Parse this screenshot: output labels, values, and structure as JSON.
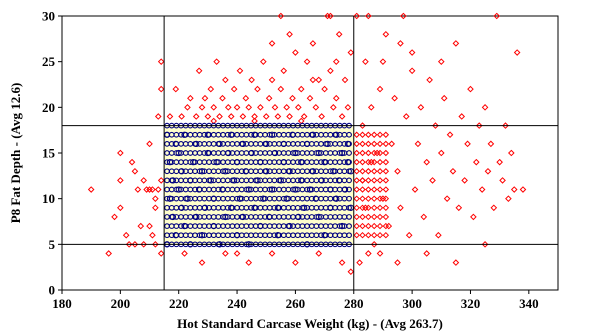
{
  "chart_data": {
    "type": "scatter",
    "title": "",
    "xlabel": "Hot Standard Carcase Weight (kg) - (Avg 263.7)",
    "ylabel": "P8 Fat Depth - (Avg 12.6)",
    "xlim": [
      180,
      350
    ],
    "ylim": [
      0,
      30
    ],
    "x_ticks": [
      180,
      200,
      220,
      240,
      260,
      280,
      300,
      320,
      340
    ],
    "y_ticks": [
      0,
      5,
      10,
      15,
      20,
      25,
      30
    ],
    "grid": false,
    "legend": "none",
    "reference_lines": {
      "vertical": [
        215,
        280
      ],
      "horizontal": [
        5,
        18
      ]
    },
    "in_spec_region": {
      "x": [
        215,
        280
      ],
      "y": [
        5,
        18
      ],
      "fill_color": "#ffffcc"
    },
    "series": [
      {
        "marker": "diamond",
        "color": "#ff0000",
        "description_points": "outside specification",
        "points": [
          [
            190,
            11
          ],
          [
            196,
            4
          ],
          [
            198,
            8
          ],
          [
            200,
            12
          ],
          [
            200,
            9
          ],
          [
            202,
            6
          ],
          [
            203,
            5
          ],
          [
            204,
            14
          ],
          [
            205,
            5
          ],
          [
            206,
            11
          ],
          [
            207,
            7
          ],
          [
            208,
            5
          ],
          [
            208,
            12
          ],
          [
            209,
            11
          ],
          [
            210,
            11
          ],
          [
            210,
            7
          ],
          [
            211,
            11
          ],
          [
            211,
            6
          ],
          [
            212,
            10
          ],
          [
            212,
            9
          ],
          [
            212,
            5
          ],
          [
            213,
            11
          ],
          [
            214,
            4
          ],
          [
            214,
            12
          ],
          [
            214,
            25
          ],
          [
            214,
            22
          ],
          [
            213,
            19
          ],
          [
            210,
            16
          ],
          [
            205,
            13
          ],
          [
            200,
            15
          ],
          [
            217,
            19
          ],
          [
            219,
            22
          ],
          [
            221,
            19
          ],
          [
            223,
            20
          ],
          [
            224,
            21
          ],
          [
            226,
            19
          ],
          [
            227,
            24
          ],
          [
            228,
            20
          ],
          [
            229,
            21
          ],
          [
            230,
            19
          ],
          [
            231,
            22
          ],
          [
            232,
            20
          ],
          [
            233,
            25
          ],
          [
            234,
            19
          ],
          [
            235,
            21
          ],
          [
            236,
            23
          ],
          [
            237,
            20
          ],
          [
            238,
            19
          ],
          [
            239,
            22
          ],
          [
            240,
            20
          ],
          [
            241,
            24
          ],
          [
            242,
            19
          ],
          [
            243,
            21
          ],
          [
            244,
            20
          ],
          [
            245,
            23
          ],
          [
            246,
            19
          ],
          [
            247,
            22
          ],
          [
            248,
            20
          ],
          [
            249,
            25
          ],
          [
            250,
            19
          ],
          [
            251,
            21
          ],
          [
            252,
            23
          ],
          [
            253,
            20
          ],
          [
            254,
            19
          ],
          [
            255,
            30
          ],
          [
            255,
            22
          ],
          [
            256,
            24
          ],
          [
            257,
            20
          ],
          [
            258,
            19
          ],
          [
            259,
            21
          ],
          [
            260,
            26
          ],
          [
            261,
            20
          ],
          [
            262,
            22
          ],
          [
            263,
            19
          ],
          [
            264,
            25
          ],
          [
            265,
            21
          ],
          [
            266,
            27
          ],
          [
            267,
            20
          ],
          [
            268,
            23
          ],
          [
            269,
            19
          ],
          [
            270,
            22
          ],
          [
            271,
            30
          ],
          [
            272,
            30
          ],
          [
            272,
            24
          ],
          [
            273,
            20
          ],
          [
            274,
            21
          ],
          [
            275,
            28
          ],
          [
            276,
            19
          ],
          [
            277,
            23
          ],
          [
            278,
            20
          ],
          [
            279,
            26
          ],
          [
            258,
            28
          ],
          [
            266,
            23
          ],
          [
            274,
            25
          ],
          [
            262,
            18.5
          ],
          [
            246,
            18.5
          ],
          [
            232,
            18.5
          ],
          [
            252,
            27
          ],
          [
            222,
            4
          ],
          [
            228,
            3
          ],
          [
            236,
            4
          ],
          [
            244,
            3
          ],
          [
            252,
            4
          ],
          [
            260,
            3
          ],
          [
            268,
            4
          ],
          [
            276,
            3
          ],
          [
            279,
            2
          ],
          [
            240,
            4
          ],
          [
            281,
            30
          ],
          [
            283,
            18
          ],
          [
            283,
            12
          ],
          [
            284,
            25
          ],
          [
            285,
            30
          ],
          [
            286,
            20
          ],
          [
            287,
            5
          ],
          [
            288,
            15
          ],
          [
            289,
            22
          ],
          [
            290,
            10
          ],
          [
            291,
            28
          ],
          [
            292,
            7
          ],
          [
            293,
            16
          ],
          [
            294,
            21
          ],
          [
            295,
            13
          ],
          [
            296,
            9
          ],
          [
            297,
            30
          ],
          [
            298,
            19
          ],
          [
            299,
            6
          ],
          [
            300,
            24
          ],
          [
            301,
            11
          ],
          [
            302,
            16
          ],
          [
            303,
            20
          ],
          [
            304,
            8
          ],
          [
            305,
            14
          ],
          [
            306,
            23
          ],
          [
            307,
            12
          ],
          [
            308,
            18
          ],
          [
            309,
            6
          ],
          [
            310,
            15
          ],
          [
            311,
            21
          ],
          [
            312,
            10
          ],
          [
            313,
            17
          ],
          [
            314,
            13
          ],
          [
            315,
            27
          ],
          [
            316,
            9
          ],
          [
            317,
            19
          ],
          [
            318,
            12
          ],
          [
            319,
            16
          ],
          [
            320,
            22
          ],
          [
            321,
            8
          ],
          [
            322,
            14
          ],
          [
            323,
            18
          ],
          [
            324,
            11
          ],
          [
            325,
            20
          ],
          [
            326,
            13
          ],
          [
            327,
            16
          ],
          [
            328,
            9
          ],
          [
            329,
            30
          ],
          [
            330,
            14
          ],
          [
            331,
            12
          ],
          [
            332,
            18
          ],
          [
            333,
            10
          ],
          [
            334,
            15
          ],
          [
            335,
            11
          ],
          [
            336,
            26
          ],
          [
            338,
            11
          ],
          [
            285,
            4
          ],
          [
            295,
            3
          ],
          [
            305,
            4
          ],
          [
            315,
            3
          ],
          [
            325,
            5
          ],
          [
            282,
            3
          ],
          [
            289,
            4
          ],
          [
            300,
            26
          ],
          [
            290,
            25
          ],
          [
            310,
            25
          ],
          [
            296,
            27
          ],
          [
            286,
            14
          ],
          [
            284,
            9
          ]
        ]
      },
      {
        "marker": "circle",
        "color": "#000080",
        "description_points": "within specification",
        "points": [
          [
            216,
            5
          ],
          [
            216,
            17
          ],
          [
            217,
            10
          ],
          [
            217,
            14
          ],
          [
            218,
            8
          ],
          [
            218,
            12
          ],
          [
            219,
            6
          ],
          [
            219,
            16
          ],
          [
            220,
            11
          ],
          [
            220,
            15
          ],
          [
            221,
            9
          ],
          [
            221,
            13
          ],
          [
            222,
            7
          ],
          [
            222,
            17
          ],
          [
            223,
            10
          ],
          [
            224,
            12
          ],
          [
            224,
            5
          ],
          [
            225,
            14
          ],
          [
            226,
            8
          ],
          [
            226,
            16
          ],
          [
            227,
            11
          ],
          [
            228,
            6
          ],
          [
            228,
            13
          ],
          [
            229,
            9
          ],
          [
            230,
            15
          ],
          [
            230,
            17
          ],
          [
            231,
            12
          ],
          [
            232,
            7
          ],
          [
            232,
            10
          ],
          [
            233,
            14
          ],
          [
            234,
            5
          ],
          [
            234,
            16
          ],
          [
            235,
            11
          ],
          [
            236,
            8
          ],
          [
            236,
            13
          ],
          [
            237,
            15
          ],
          [
            238,
            9
          ],
          [
            238,
            17
          ],
          [
            239,
            12
          ],
          [
            240,
            6
          ],
          [
            240,
            14
          ],
          [
            241,
            10
          ],
          [
            242,
            16
          ],
          [
            242,
            8
          ],
          [
            243,
            13
          ],
          [
            244,
            11
          ],
          [
            244,
            5
          ],
          [
            245,
            15
          ],
          [
            246,
            9
          ],
          [
            246,
            17
          ],
          [
            247,
            12
          ],
          [
            248,
            7
          ],
          [
            248,
            14
          ],
          [
            249,
            10
          ],
          [
            250,
            16
          ],
          [
            250,
            13
          ],
          [
            251,
            8
          ],
          [
            252,
            11
          ],
          [
            252,
            17
          ],
          [
            253,
            15
          ],
          [
            254,
            9
          ],
          [
            254,
            6
          ],
          [
            255,
            12
          ],
          [
            256,
            14
          ],
          [
            256,
            16
          ],
          [
            257,
            10
          ],
          [
            258,
            13
          ],
          [
            258,
            7
          ],
          [
            259,
            17
          ],
          [
            260,
            11
          ],
          [
            260,
            15
          ],
          [
            261,
            8
          ],
          [
            262,
            12
          ],
          [
            262,
            14
          ],
          [
            263,
            9
          ],
          [
            264,
            16
          ],
          [
            264,
            5
          ],
          [
            265,
            11
          ],
          [
            266,
            13
          ],
          [
            266,
            17
          ],
          [
            267,
            10
          ],
          [
            268,
            15
          ],
          [
            268,
            8
          ],
          [
            269,
            12
          ],
          [
            270,
            14
          ],
          [
            270,
            6
          ],
          [
            271,
            16
          ],
          [
            272,
            11
          ],
          [
            272,
            9
          ],
          [
            273,
            13
          ],
          [
            274,
            17
          ],
          [
            274,
            10
          ],
          [
            275,
            12
          ],
          [
            276,
            15
          ],
          [
            276,
            7
          ],
          [
            277,
            11
          ],
          [
            278,
            14
          ],
          [
            278,
            16
          ],
          [
            279,
            9
          ],
          [
            279,
            13
          ]
        ]
      }
    ]
  }
}
